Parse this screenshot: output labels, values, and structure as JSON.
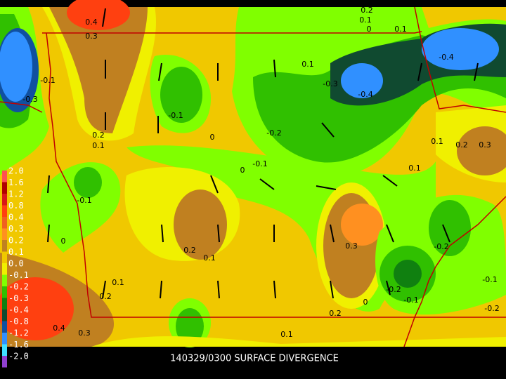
{
  "title": "140329/0300 SURFACE DIVERGENCE",
  "colorbar": {
    "labels": [
      "2.0",
      "1.6",
      "1.2",
      "0.8",
      "0.4",
      "0.3",
      "0.2",
      "0.1",
      "0.0",
      "-0.1",
      "-0.2",
      "-0.3",
      "-0.4",
      "-0.8",
      "-1.2",
      "-1.6",
      "-2.0"
    ],
    "colors": [
      "#ff5050",
      "#b00000",
      "#d81818",
      "#ff4010",
      "#f06020",
      "#ff9020",
      "#c08020",
      "#f0c800",
      "#f0f000",
      "#80ff00",
      "#30c000",
      "#108010",
      "#104a30",
      "#1050a0",
      "#3090ff",
      "#40e0ff",
      "#9040d0"
    ]
  },
  "contour_labels": [
    "0.4",
    "0.3",
    "0.2",
    "0.1",
    "0",
    "0.1",
    "-0.4",
    "0.1",
    "-0.3",
    "-0.4",
    "-0.1",
    "-0.3",
    "-0.1",
    "-0.2",
    "0.2",
    "0.1",
    "0",
    "0.1",
    "0.2",
    "0.3",
    "-0.1",
    "0",
    "0.1",
    "-0.1",
    "0",
    "0.3",
    "-0.2",
    "0.2",
    "0.1",
    "0.1",
    "-0.1",
    "0.2",
    "-0.2",
    "-0.1",
    "0",
    "-0.2",
    "0.2",
    "0.4",
    "0.3",
    "0.1"
  ]
}
